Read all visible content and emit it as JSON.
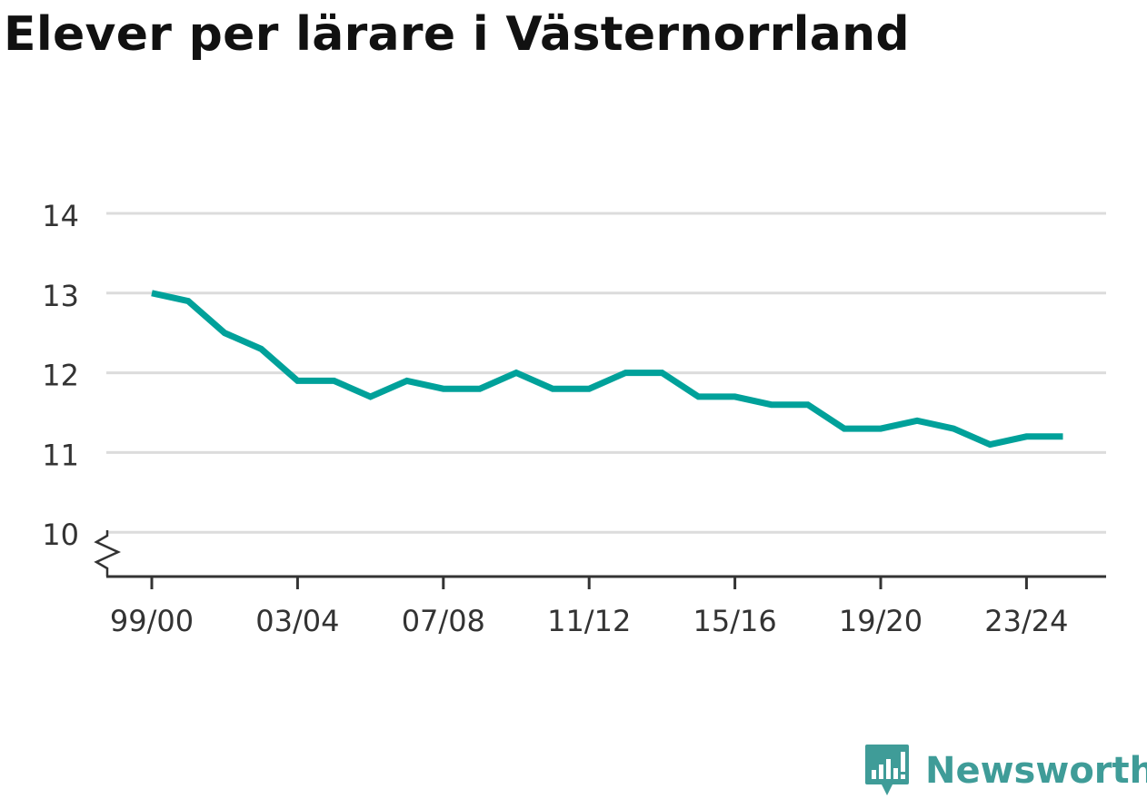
{
  "colors": {
    "line": "#00a19a",
    "grid": "#dcdcdc",
    "axis": "#333333",
    "title": "#111111",
    "brand": "#3f9c98"
  },
  "brand": {
    "name": "Newsworthy",
    "icon": "newsworthy-chart-bubble-icon"
  },
  "chart_data": {
    "type": "line",
    "title": "Elever per lärare i Västernorrland",
    "xlabel": "",
    "ylabel": "",
    "ylim": [
      10,
      14
    ],
    "y_axis_break": true,
    "grid": "horizontal",
    "y_ticks": [
      "10",
      "11",
      "12",
      "13",
      "14"
    ],
    "x_tick_labels": [
      "99/00",
      "03/04",
      "07/08",
      "11/12",
      "15/16",
      "19/20",
      "23/24"
    ],
    "x_tick_indices": [
      0,
      4,
      8,
      12,
      16,
      20,
      24
    ],
    "categories": [
      "99/00",
      "00/01",
      "01/02",
      "02/03",
      "03/04",
      "04/05",
      "05/06",
      "06/07",
      "07/08",
      "08/09",
      "09/10",
      "10/11",
      "11/12",
      "12/13",
      "13/14",
      "14/15",
      "15/16",
      "16/17",
      "17/18",
      "18/19",
      "19/20",
      "20/21",
      "21/22",
      "22/23",
      "23/24",
      "24/25"
    ],
    "series": [
      {
        "values": [
          13.0,
          12.9,
          12.5,
          12.3,
          11.9,
          11.9,
          11.7,
          11.9,
          11.8,
          11.8,
          12.0,
          11.8,
          11.8,
          12.0,
          12.0,
          11.7,
          11.7,
          11.6,
          11.6,
          11.3,
          11.3,
          11.4,
          11.3,
          11.1,
          11.2,
          11.2
        ]
      }
    ]
  }
}
